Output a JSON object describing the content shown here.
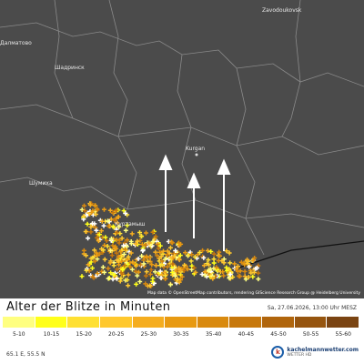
{
  "map": {
    "places": [
      {
        "label": "Zavodoukovsk"
      },
      {
        "label": "Далматово"
      },
      {
        "label": "Шадринск"
      },
      {
        "label": "Kurgan"
      },
      {
        "label": "Шумиха"
      },
      {
        "label": "Куртамыш"
      }
    ],
    "attribution": "Map data © OpenStreetMap contributors, rendering GIScience Research Group @ Heidelberg University"
  },
  "legend": {
    "title": "Alter der Blitze in Minuten",
    "date": "Sa, 27.06.2026, 13:00 Uhr MESZ",
    "items": [
      {
        "label": "5-10",
        "color": "#ffff80"
      },
      {
        "label": "10-15",
        "color": "#ffff1a"
      },
      {
        "label": "15-20",
        "color": "#ffe033"
      },
      {
        "label": "20-25",
        "color": "#ffc82e"
      },
      {
        "label": "25-30",
        "color": "#f5ad1f"
      },
      {
        "label": "30-35",
        "color": "#e89a12"
      },
      {
        "label": "35-40",
        "color": "#d98a0f"
      },
      {
        "label": "40-45",
        "color": "#c7780c"
      },
      {
        "label": "45-50",
        "color": "#b0650c"
      },
      {
        "label": "50-55",
        "color": "#96550f"
      },
      {
        "label": "55-60",
        "color": "#7a4412"
      }
    ]
  },
  "footer": {
    "coords": "65.1 E, 55.5 N",
    "brand": "kachelmannwetter.com",
    "brand_sub": "WETTER HD"
  }
}
